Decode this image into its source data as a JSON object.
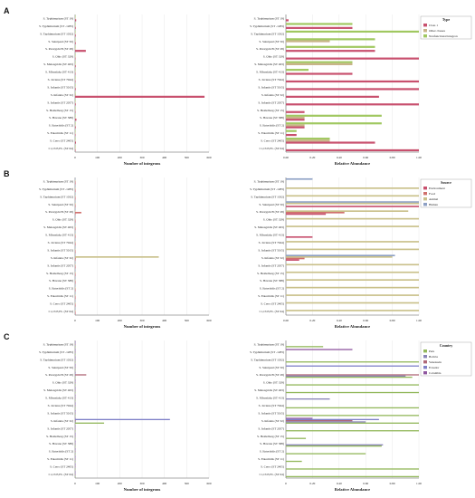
{
  "chart_data": [
    {
      "panel": "A",
      "type": "bar",
      "orientation": "horizontal",
      "xlabel": "Number of integrons",
      "xlim": [
        0,
        600
      ],
      "xticks": [
        0,
        100,
        200,
        300,
        400,
        500,
        600
      ],
      "categories": [
        "S. Typhimurium (ST 19)",
        "S. Typhimurium (ST -1283)",
        "S. Typhimurium (ST 1032)",
        "S. Saintpaul (ST 50)",
        "S. Paratyphi B (ST 28)",
        "S. Ohio (ST 329)",
        "S. Meleagridis (ST 463)",
        "S. Mbandaka (ST 413)",
        "S. Javiana (ST 7944)",
        "S. Infantis (ST 5015)",
        "S. Infantis (ST 32)",
        "S. Infantis (ST 2057)",
        "S. Heidelberg (ST 15)",
        "S. Havana (ST 588)",
        "S. Enteritidis (ST 2)",
        "S. Enteritidis (ST 11)",
        "S. Cerro (ST 2405)",
        "I 1,15:E,H:- (ST 64)"
      ],
      "series": [
        {
          "name": "Nonfunctional integron",
          "color": "#a0c860",
          "values": [
            2,
            1,
            1,
            1,
            1,
            1,
            1,
            1,
            1,
            1,
            2,
            1,
            1,
            2,
            1,
            1,
            2,
            1
          ]
        },
        {
          "name": "Other classes",
          "color": "#c8b488",
          "values": [
            2,
            1,
            1,
            1,
            2,
            1,
            1,
            1,
            1,
            1,
            3,
            1,
            1,
            2,
            1,
            1,
            2,
            1
          ]
        },
        {
          "name": "Class 1",
          "color": "#c8506e",
          "values": [
            5,
            3,
            3,
            3,
            48,
            2,
            3,
            2,
            2,
            3,
            580,
            3,
            2,
            6,
            3,
            2,
            4,
            2
          ]
        }
      ]
    },
    {
      "panel": "A",
      "type": "bar",
      "orientation": "horizontal",
      "stacking": "grouped",
      "xlabel": "Relative Abundance",
      "xlim": [
        0,
        1
      ],
      "xticks": [
        "0.00",
        "0.20",
        "0.40",
        "0.60",
        "0.80",
        "1.00"
      ],
      "legend": {
        "title": "Type",
        "placement": "top-right"
      },
      "categories": [
        "S. Typhimurium (ST 19)",
        "S. Typhimurium (ST -1283)",
        "S. Typhimurium (ST 1032)",
        "S. Saintpaul (ST 50)",
        "S. Paratyphi B (ST 28)",
        "S. Ohio (ST 329)",
        "S. Meleagridis (ST 463)",
        "S. Mbandaka (ST 413)",
        "S. Javiana (ST 7944)",
        "S. Infantis (ST 5015)",
        "S. Infantis (ST 32)",
        "S. Infantis (ST 2057)",
        "S. Heidelberg (ST 15)",
        "S. Havana (ST 588)",
        "S. Enteritidis (ST 2)",
        "S. Enteritidis (ST 11)",
        "S. Cerro (ST 2405)",
        "I 1,15:E,H:- (ST 64)"
      ],
      "series": [
        {
          "name": "Nonfunctional integron",
          "color": "#a0c860",
          "values": [
            0,
            0.5,
            1.0,
            0.67,
            0.67,
            0,
            0.5,
            0.17,
            0,
            0,
            0,
            0,
            0,
            0.72,
            0.72,
            0.08,
            0.33,
            0
          ]
        },
        {
          "name": "Other classes",
          "color": "#c8b488",
          "values": [
            0,
            0,
            0,
            0.33,
            0,
            0,
            0.5,
            0,
            0,
            0,
            0,
            0,
            0,
            0.14,
            0.14,
            0,
            0.33,
            0
          ]
        },
        {
          "name": "Class 1",
          "color": "#c8506e",
          "values": [
            0.02,
            0.5,
            0,
            0,
            0.67,
            1.0,
            0,
            0.5,
            1.0,
            1.0,
            0.7,
            1.0,
            0.14,
            0.14,
            0.14,
            0.08,
            0.67,
            1.0
          ]
        }
      ]
    },
    {
      "panel": "B",
      "type": "bar",
      "orientation": "horizontal",
      "xlabel": "Number of integrons",
      "xlim": [
        0,
        600
      ],
      "xticks": [
        0,
        100,
        200,
        300,
        400,
        500,
        600
      ],
      "categories": [
        "S. Typhimurium (ST 19)",
        "S. Typhimurium (ST -1283)",
        "S. Typhimurium (ST 1032)",
        "S. Saintpaul (ST 50)",
        "S. Paratyphi B (ST 28)",
        "S. Ohio (ST 329)",
        "S. Meleagridis (ST 463)",
        "S. Mbandaka (ST 413)",
        "S. Javiana (ST 7944)",
        "S. Infantis (ST 5015)",
        "S. Infantis (ST 32)",
        "S. Infantis (ST 2057)",
        "S. Heidelberg (ST 15)",
        "S. Havana (ST 588)",
        "S. Enteritidis (ST 2)",
        "S. Enteritidis (ST 11)",
        "S. Cerro (ST 2405)",
        "I 1,15:E,H:- (ST 64)"
      ],
      "series": [
        {
          "name": "Human",
          "color": "#8da0c4",
          "values": [
            1,
            1,
            1,
            1,
            1,
            1,
            1,
            1,
            1,
            1,
            2,
            1,
            1,
            1,
            1,
            1,
            1,
            1
          ]
        },
        {
          "name": "Animal",
          "color": "#c9c08a",
          "values": [
            2,
            1,
            1,
            1,
            2,
            1,
            1,
            1,
            1,
            1,
            375,
            1,
            1,
            2,
            1,
            1,
            2,
            1
          ]
        },
        {
          "name": "Food",
          "color": "#d0706c",
          "values": [
            1,
            1,
            1,
            2,
            28,
            1,
            1,
            1,
            1,
            1,
            3,
            1,
            1,
            1,
            1,
            1,
            1,
            1
          ]
        },
        {
          "name": "Environment",
          "color": "#c8506e",
          "values": [
            1,
            1,
            1,
            1,
            2,
            1,
            1,
            1,
            1,
            1,
            2,
            1,
            1,
            1,
            1,
            1,
            1,
            1
          ]
        }
      ]
    },
    {
      "panel": "B",
      "type": "bar",
      "orientation": "horizontal",
      "stacking": "grouped",
      "xlabel": "Relative Abundance",
      "xlim": [
        0,
        1
      ],
      "xticks": [
        "0.00",
        "0.20",
        "0.40",
        "0.60",
        "0.80",
        "1.00"
      ],
      "legend": {
        "title": "Source",
        "placement": "top-right"
      },
      "categories": [
        "S. Typhimurium (ST 19)",
        "S. Typhimurium (ST -1283)",
        "S. Typhimurium (ST 1032)",
        "S. Saintpaul (ST 50)",
        "S. Paratyphi B (ST 28)",
        "S. Ohio (ST 329)",
        "S. Meleagridis (ST 463)",
        "S. Mbandaka (ST 413)",
        "S. Javiana (ST 7944)",
        "S. Infantis (ST 5015)",
        "S. Infantis (ST 32)",
        "S. Infantis (ST 2057)",
        "S. Heidelberg (ST 15)",
        "S. Havana (ST 588)",
        "S. Enteritidis (ST 2)",
        "S. Enteritidis (ST 11)",
        "S. Cerro (ST 2405)",
        "I 1,15:E,H:- (ST 64)"
      ],
      "series": [
        {
          "name": "Human",
          "color": "#8da0c4",
          "values": [
            0.2,
            0,
            0,
            1.0,
            0,
            0,
            0,
            0,
            0,
            0,
            0.82,
            0,
            0,
            0,
            0,
            0,
            0,
            0
          ]
        },
        {
          "name": "Animal",
          "color": "#c9c08a",
          "values": [
            0,
            1.0,
            1.0,
            1.0,
            0.92,
            1.0,
            1.0,
            0,
            1.0,
            1.0,
            0.8,
            1.0,
            1.0,
            1.0,
            1.0,
            1.0,
            1.0,
            1.0
          ]
        },
        {
          "name": "Food",
          "color": "#d0706c",
          "values": [
            0,
            0,
            0,
            0,
            0.44,
            0,
            0,
            0,
            0,
            0,
            0.14,
            0,
            0,
            0,
            0,
            0,
            0,
            0
          ]
        },
        {
          "name": "Environment",
          "color": "#c8506e",
          "values": [
            0,
            0,
            0,
            1.0,
            0.3,
            0,
            0,
            0.2,
            0,
            0,
            0.1,
            0,
            0,
            0,
            0,
            0,
            0,
            0
          ]
        }
      ]
    },
    {
      "panel": "C",
      "type": "bar",
      "orientation": "horizontal",
      "xlabel": "Number of integrons",
      "xlim": [
        0,
        600
      ],
      "xticks": [
        0,
        100,
        200,
        300,
        400,
        500,
        600
      ],
      "categories": [
        "S. Typhimurium (ST 19)",
        "S. Typhimurium (ST -1283)",
        "S. Typhimurium (ST 1032)",
        "S. Saintpaul (ST 50)",
        "S. Paratyphi B (ST 28)",
        "S. Ohio (ST 329)",
        "S. Meleagridis (ST 463)",
        "S. Mbandaka (ST 413)",
        "S. Javiana (ST 7944)",
        "S. Infantis (ST 5015)",
        "S. Infantis (ST 32)",
        "S. Infantis (ST 2057)",
        "S. Heidelberg (ST 15)",
        "S. Havana (ST 588)",
        "S. Enteritidis (ST 2)",
        "S. Enteritidis (ST 11)",
        "S. Cerro (ST 2405)",
        "I 1,15:E,H:- (ST 64)"
      ],
      "series": [
        {
          "name": "Colombia",
          "color": "#9058a0",
          "values": [
            1,
            1,
            1,
            1,
            1,
            1,
            1,
            1,
            1,
            1,
            2,
            1,
            1,
            1,
            1,
            1,
            1,
            1
          ]
        },
        {
          "name": "Ecuador",
          "color": "#7f80c8",
          "values": [
            1,
            1,
            1,
            1,
            1,
            1,
            1,
            1,
            1,
            1,
            425,
            1,
            1,
            1,
            1,
            1,
            1,
            1
          ]
        },
        {
          "name": "Venezuela",
          "color": "#b06878",
          "values": [
            2,
            1,
            1,
            1,
            50,
            1,
            1,
            1,
            1,
            1,
            3,
            1,
            1,
            2,
            1,
            1,
            1,
            1
          ]
        },
        {
          "name": "Bolivia",
          "color": "#8a84b8",
          "values": [
            1,
            1,
            1,
            1,
            2,
            1,
            1,
            1,
            1,
            1,
            3,
            1,
            1,
            1,
            1,
            1,
            1,
            1
          ]
        },
        {
          "name": "Peru",
          "color": "#93b85c",
          "values": [
            2,
            1,
            2,
            1,
            2,
            1,
            1,
            1,
            1,
            1,
            130,
            1,
            1,
            2,
            1,
            1,
            2,
            1
          ]
        }
      ]
    },
    {
      "panel": "C",
      "type": "bar",
      "orientation": "horizontal",
      "stacking": "grouped",
      "xlabel": "Relative Abundance",
      "xlim": [
        0,
        1
      ],
      "xticks": [
        "0",
        "0.20",
        "0.40",
        "0.60",
        "0.80",
        "1.00"
      ],
      "legend": {
        "title": "Country",
        "placement": "top-right"
      },
      "categories": [
        "S. Typhimurium (ST 19)",
        "S. Typhimurium (ST -1283)",
        "S. Typhimurium (ST 1032)",
        "S. Saintpaul (ST 50)",
        "S. Paratyphi B (ST 28)",
        "S. Ohio (ST 329)",
        "S. Meleagridis (ST 463)",
        "S. Mbandaka (ST 413)",
        "S. Javiana (ST 7944)",
        "S. Infantis (ST 5015)",
        "S. Infantis (ST 32)",
        "S. Infantis (ST 2057)",
        "S. Heidelberg (ST 15)",
        "S. Havana (ST 588)",
        "S. Enteritidis (ST 2)",
        "S. Enteritidis (ST 11)",
        "S. Cerro (ST 2405)",
        "I 1,15:E,H:- (ST 64)"
      ],
      "series": [
        {
          "name": "Colombia",
          "color": "#9058a0",
          "values": [
            0,
            0.5,
            0,
            0,
            0,
            0,
            0,
            0,
            0,
            0,
            0.2,
            0,
            0,
            0,
            0,
            0,
            0,
            0
          ]
        },
        {
          "name": "Ecuador",
          "color": "#7f80c8",
          "values": [
            0,
            0,
            0,
            1.0,
            0,
            0,
            0,
            0,
            0,
            0,
            0.7,
            0,
            0,
            0,
            0,
            0,
            0,
            0
          ]
        },
        {
          "name": "Venezuela",
          "color": "#b06878",
          "values": [
            0,
            0,
            0,
            0,
            1.0,
            0,
            0,
            0,
            0,
            0,
            0.5,
            0,
            0,
            0,
            0,
            0,
            0,
            0
          ]
        },
        {
          "name": "Bolivia",
          "color": "#8a84b8",
          "values": [
            0,
            0,
            0,
            0,
            0.9,
            0,
            0,
            0.33,
            0,
            0,
            0.6,
            0,
            0,
            0.73,
            0,
            0,
            0,
            0
          ]
        },
        {
          "name": "Peru",
          "color": "#93b85c",
          "values": [
            0.28,
            0,
            1.0,
            0,
            0.95,
            1.0,
            1.0,
            0,
            1.0,
            1.0,
            1.0,
            1.0,
            0.15,
            0.72,
            0.6,
            0.12,
            1.0,
            1.0
          ]
        }
      ]
    }
  ]
}
